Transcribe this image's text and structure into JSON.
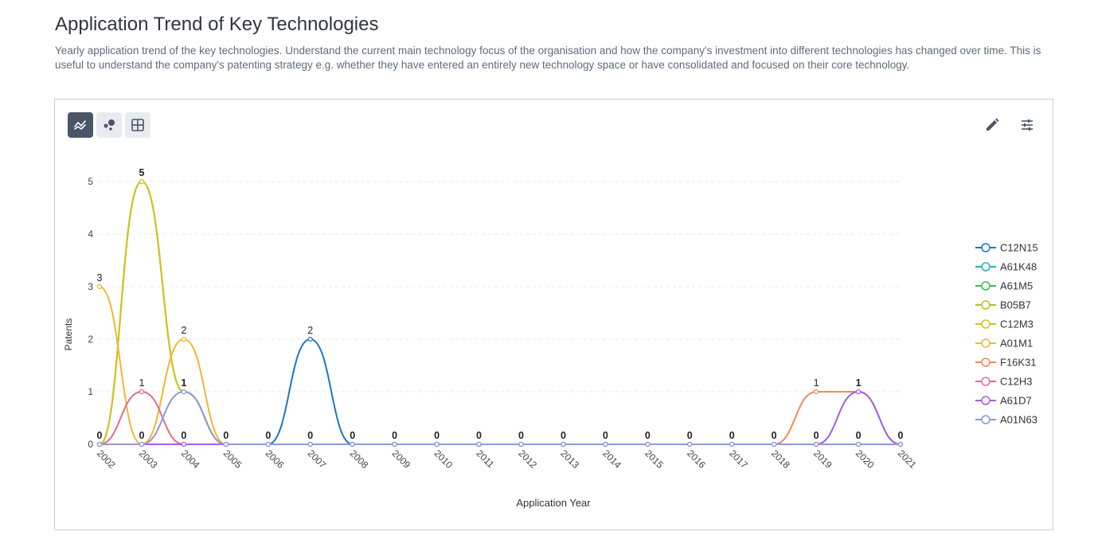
{
  "page": {
    "title": "Application Trend of Key Technologies",
    "description": "Yearly application trend of the key technologies. Understand the current main technology focus of the organisation and how the company's investment into different technologies has changed over time. This is useful to understand the company's patenting strategy e.g. whether they have entered an entirely new technology space or have consolidated and focused on their core technology."
  },
  "toolbar": {
    "view_buttons": [
      {
        "icon": "line-chart-icon",
        "active": true
      },
      {
        "icon": "bubble-chart-icon",
        "active": false
      },
      {
        "icon": "table-grid-icon",
        "active": false
      }
    ],
    "tools": [
      {
        "icon": "pencil-edit-icon"
      },
      {
        "icon": "filter-settings-icon"
      }
    ]
  },
  "chart_data": {
    "type": "line",
    "smooth": true,
    "xlabel": "Application Year",
    "ylabel": "Patents",
    "ylim": [
      0,
      5
    ],
    "yticks": [
      0,
      1,
      2,
      3,
      4,
      5
    ],
    "grid": true,
    "legend": "right",
    "categories": [
      "2002",
      "2003",
      "2004",
      "2005",
      "2006",
      "2007",
      "2008",
      "2009",
      "2010",
      "2011",
      "2012",
      "2013",
      "2014",
      "2015",
      "2016",
      "2017",
      "2018",
      "2019",
      "2020",
      "2021"
    ],
    "series": [
      {
        "name": "C12N15",
        "color": "#1f77c4",
        "values": [
          0,
          0,
          0,
          0,
          0,
          2,
          0,
          0,
          0,
          0,
          0,
          0,
          0,
          0,
          0,
          0,
          0,
          0,
          0,
          0
        ]
      },
      {
        "name": "A61K48",
        "color": "#2ab0b8",
        "values": [
          0,
          0,
          0,
          0,
          0,
          0,
          0,
          0,
          0,
          0,
          0,
          0,
          0,
          0,
          0,
          0,
          0,
          0,
          0,
          0
        ]
      },
      {
        "name": "A61M5",
        "color": "#44b85c",
        "values": [
          0,
          5,
          1,
          0,
          0,
          0,
          0,
          0,
          0,
          0,
          0,
          0,
          0,
          0,
          0,
          0,
          0,
          0,
          0,
          0
        ]
      },
      {
        "name": "B05B7",
        "color": "#a8c82a",
        "values": [
          0,
          5,
          1,
          0,
          0,
          0,
          0,
          0,
          0,
          0,
          0,
          0,
          0,
          0,
          0,
          0,
          0,
          0,
          0,
          0
        ]
      },
      {
        "name": "C12M3",
        "color": "#d4c21f",
        "values": [
          0,
          5,
          1,
          0,
          0,
          0,
          0,
          0,
          0,
          0,
          0,
          0,
          0,
          0,
          0,
          0,
          0,
          0,
          0,
          0
        ]
      },
      {
        "name": "A01M1",
        "color": "#f2b632",
        "values": [
          3,
          0,
          2,
          0,
          0,
          0,
          0,
          0,
          0,
          0,
          0,
          0,
          0,
          0,
          0,
          0,
          0,
          0,
          0,
          0
        ]
      },
      {
        "name": "F16K31",
        "color": "#f28a50",
        "values": [
          0,
          0,
          0,
          0,
          0,
          0,
          0,
          0,
          0,
          0,
          0,
          0,
          0,
          0,
          0,
          0,
          0,
          1,
          1,
          0
        ]
      },
      {
        "name": "C12H3",
        "color": "#e46b8f",
        "values": [
          0,
          1,
          0,
          0,
          0,
          0,
          0,
          0,
          0,
          0,
          0,
          0,
          0,
          0,
          0,
          0,
          0,
          0,
          0,
          0
        ]
      },
      {
        "name": "A61D7",
        "color": "#a35fe3",
        "values": [
          0,
          0,
          0,
          0,
          0,
          0,
          0,
          0,
          0,
          0,
          0,
          0,
          0,
          0,
          0,
          0,
          0,
          0,
          1,
          0
        ]
      },
      {
        "name": "A01N63",
        "color": "#8d99d8",
        "values": [
          0,
          0,
          1,
          0,
          0,
          0,
          0,
          0,
          0,
          0,
          0,
          0,
          0,
          0,
          0,
          0,
          0,
          0,
          0,
          0
        ]
      }
    ],
    "data_labels": [
      {
        "x": "2002",
        "text": "3",
        "value": 3,
        "bold": false
      },
      {
        "x": "2003",
        "text": "5",
        "value": 5,
        "bold": true
      },
      {
        "x": "2003",
        "text": "1",
        "value": 1,
        "bold": false
      },
      {
        "x": "2004",
        "text": "2",
        "value": 2,
        "bold": false
      },
      {
        "x": "2004",
        "text": "1",
        "value": 1,
        "bold": true
      },
      {
        "x": "2007",
        "text": "2",
        "value": 2,
        "bold": false
      },
      {
        "x": "2019",
        "text": "1",
        "value": 1,
        "bold": false
      },
      {
        "x": "2020",
        "text": "1",
        "value": 1,
        "bold": true
      },
      {
        "x": "2002",
        "text": "0",
        "value": 0,
        "bold": true
      },
      {
        "x": "2003",
        "text": "0",
        "value": 0,
        "bold": true
      },
      {
        "x": "2004",
        "text": "0",
        "value": 0,
        "bold": true
      },
      {
        "x": "2005",
        "text": "0",
        "value": 0,
        "bold": true
      },
      {
        "x": "2006",
        "text": "0",
        "value": 0,
        "bold": true
      },
      {
        "x": "2007",
        "text": "0",
        "value": 0,
        "bold": true
      },
      {
        "x": "2008",
        "text": "0",
        "value": 0,
        "bold": true
      },
      {
        "x": "2009",
        "text": "0",
        "value": 0,
        "bold": true
      },
      {
        "x": "2010",
        "text": "0",
        "value": 0,
        "bold": true
      },
      {
        "x": "2011",
        "text": "0",
        "value": 0,
        "bold": true
      },
      {
        "x": "2012",
        "text": "0",
        "value": 0,
        "bold": true
      },
      {
        "x": "2013",
        "text": "0",
        "value": 0,
        "bold": true
      },
      {
        "x": "2014",
        "text": "0",
        "value": 0,
        "bold": true
      },
      {
        "x": "2015",
        "text": "0",
        "value": 0,
        "bold": true
      },
      {
        "x": "2016",
        "text": "0",
        "value": 0,
        "bold": true
      },
      {
        "x": "2017",
        "text": "0",
        "value": 0,
        "bold": true
      },
      {
        "x": "2018",
        "text": "0",
        "value": 0,
        "bold": true
      },
      {
        "x": "2019",
        "text": "0",
        "value": 0,
        "bold": true
      },
      {
        "x": "2020",
        "text": "0",
        "value": 0,
        "bold": true
      },
      {
        "x": "2021",
        "text": "0",
        "value": 0,
        "bold": true
      }
    ]
  }
}
